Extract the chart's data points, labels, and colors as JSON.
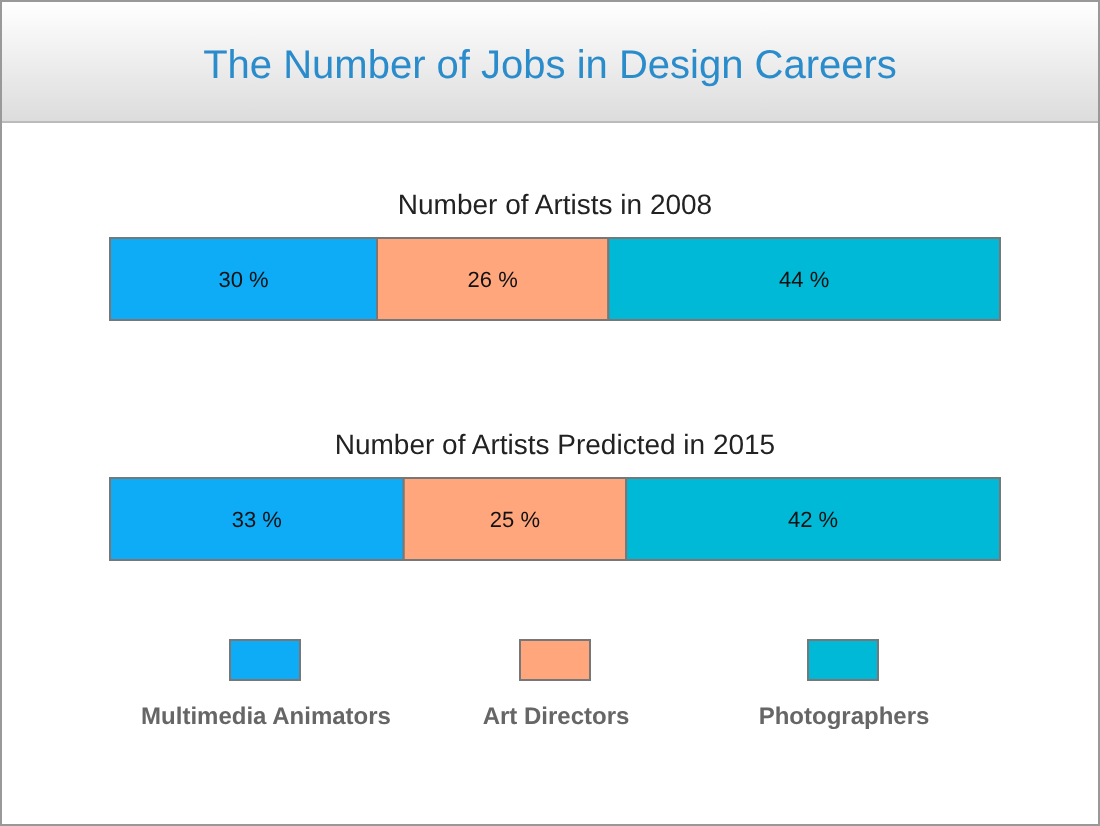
{
  "chart_data": {
    "type": "bar",
    "title": "The Number of Jobs in Design Careers",
    "orientation": "horizontal",
    "stacked": true,
    "categories": [
      "Number of Artists in 2008",
      "Number of Artists Predicted in 2015"
    ],
    "series": [
      {
        "name": "Multimedia Animators",
        "color": "#0eabf7",
        "values": [
          30,
          33
        ],
        "value_labels": [
          "30 %",
          "33 %"
        ]
      },
      {
        "name": "Art Directors",
        "color": "#ffa67c",
        "values": [
          26,
          25
        ],
        "value_labels": [
          "26 %",
          "25 %"
        ]
      },
      {
        "name": "Photographers",
        "color": "#00b9d6",
        "values": [
          44,
          42
        ],
        "value_labels": [
          "44 %",
          "42 %"
        ]
      }
    ],
    "xlim": [
      0,
      100
    ],
    "legend": "bottom"
  }
}
